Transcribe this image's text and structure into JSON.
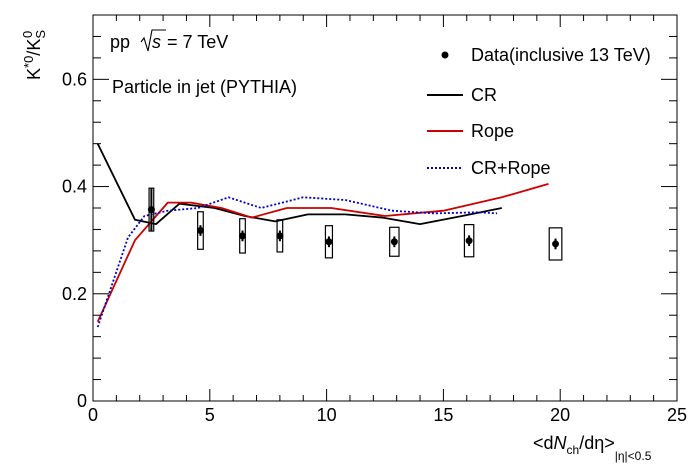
{
  "chart_data": {
    "type": "line",
    "xlabel": {
      "pre": "<d",
      "n": "N",
      "sub": "ch",
      "post": "/dη>",
      "range": "|η|<0.5"
    },
    "ylabel": {
      "base": "K",
      "sup": "*0",
      "sep": "/K",
      "sub": "S",
      "sup2": "0"
    },
    "xlim": [
      0,
      25
    ],
    "ylim": [
      0,
      0.72
    ],
    "x_ticks": [
      0,
      5,
      10,
      15,
      20,
      25
    ],
    "x_tick_labels": [
      "0",
      "5",
      "10",
      "15",
      "20",
      "25"
    ],
    "y_ticks": [
      0,
      0.2,
      0.4,
      0.6
    ],
    "y_tick_labels": [
      "0",
      "0.2",
      "0.4",
      "0.6"
    ],
    "annotations": {
      "system": "pp",
      "sqrt_label": "s",
      "energy": "= 7 TeV",
      "subtitle": "Particle in jet (PYTHIA)"
    },
    "legend": {
      "placement": "top-right",
      "entries": [
        {
          "label": "Data(inclusive 13 TeV)",
          "style": "marker"
        },
        {
          "label": "CR",
          "style": "line",
          "color": "#000000",
          "dash": "solid"
        },
        {
          "label": "Rope",
          "style": "line",
          "color": "#cc0000",
          "dash": "solid"
        },
        {
          "label": "CR+Rope",
          "style": "line",
          "color": "#0000cc",
          "dash": "dotted"
        }
      ]
    },
    "data": {
      "name": "Data(inclusive 13 TeV)",
      "points": [
        {
          "x": 2.5,
          "y": 0.357,
          "stat": 0.04,
          "syst_x": 0.1,
          "syst": 0.04
        },
        {
          "x": 4.6,
          "y": 0.318,
          "stat": 0.01,
          "syst_x": 0.12,
          "syst": 0.035
        },
        {
          "x": 6.4,
          "y": 0.308,
          "stat": 0.01,
          "syst_x": 0.12,
          "syst": 0.032
        },
        {
          "x": 8.0,
          "y": 0.308,
          "stat": 0.01,
          "syst_x": 0.12,
          "syst": 0.03
        },
        {
          "x": 10.1,
          "y": 0.297,
          "stat": 0.01,
          "syst_x": 0.15,
          "syst": 0.03
        },
        {
          "x": 12.9,
          "y": 0.297,
          "stat": 0.01,
          "syst_x": 0.2,
          "syst": 0.027
        },
        {
          "x": 16.1,
          "y": 0.299,
          "stat": 0.01,
          "syst_x": 0.2,
          "syst": 0.03
        },
        {
          "x": 19.8,
          "y": 0.293,
          "stat": 0.01,
          "syst_x": 0.27,
          "syst": 0.03
        }
      ]
    },
    "series": [
      {
        "name": "CR",
        "color": "#000000",
        "dash": "solid",
        "x": [
          0.2,
          1.8,
          2.7,
          3.7,
          5.2,
          6.5,
          7.8,
          9.2,
          10.8,
          12.4,
          14.0,
          15.8,
          17.5
        ],
        "y": [
          0.48,
          0.338,
          0.33,
          0.368,
          0.36,
          0.345,
          0.335,
          0.348,
          0.348,
          0.342,
          0.33,
          0.345,
          0.36
        ]
      },
      {
        "name": "Rope",
        "color": "#cc0000",
        "dash": "solid",
        "x": [
          0.2,
          1.8,
          3.2,
          4.2,
          5.5,
          6.8,
          8.3,
          10.2,
          12.5,
          15.0,
          17.5,
          19.5
        ],
        "y": [
          0.148,
          0.3,
          0.37,
          0.37,
          0.36,
          0.342,
          0.36,
          0.36,
          0.345,
          0.355,
          0.38,
          0.405
        ]
      },
      {
        "name": "CR+Rope",
        "color": "#0000cc",
        "dash": "dotted",
        "x": [
          0.2,
          1.5,
          2.2,
          3.2,
          4.5,
          5.8,
          7.2,
          9.0,
          10.8,
          12.8,
          14.6,
          16.5,
          17.3
        ],
        "y": [
          0.138,
          0.305,
          0.345,
          0.355,
          0.36,
          0.38,
          0.36,
          0.38,
          0.375,
          0.355,
          0.35,
          0.352,
          0.35
        ]
      }
    ]
  }
}
